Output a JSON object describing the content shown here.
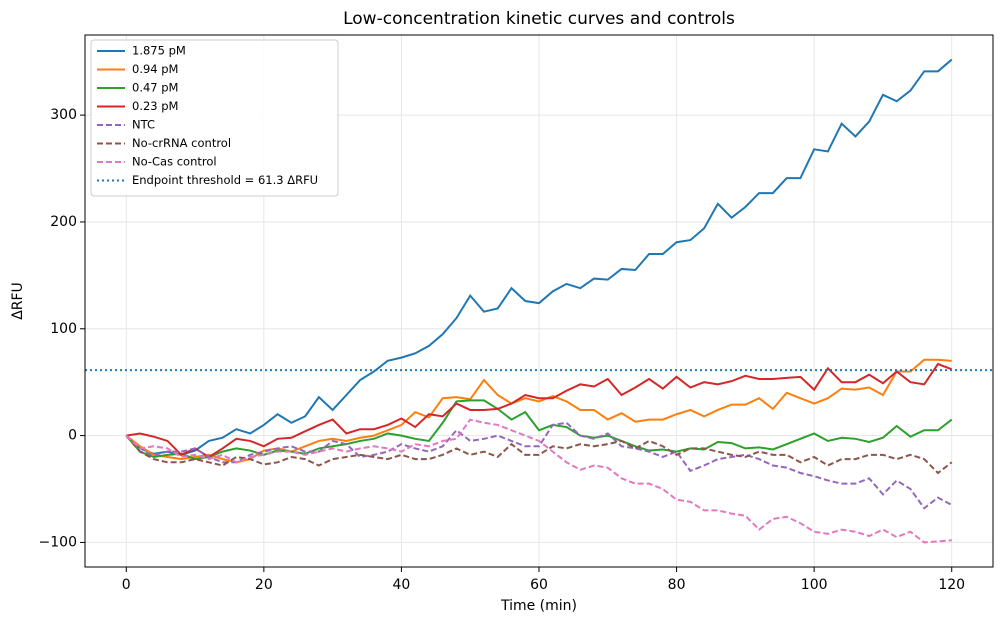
{
  "chart_data": {
    "type": "line",
    "title": "Low-concentration kinetic curves and controls",
    "xlabel": "Time (min)",
    "ylabel": "ΔRFU",
    "x": [
      0,
      2,
      4,
      6,
      8,
      10,
      12,
      14,
      16,
      18,
      20,
      22,
      24,
      26,
      28,
      30,
      32,
      34,
      36,
      38,
      40,
      42,
      44,
      46,
      48,
      50,
      52,
      54,
      56,
      58,
      60,
      62,
      64,
      66,
      68,
      70,
      72,
      74,
      76,
      78,
      80,
      82,
      84,
      86,
      88,
      90,
      92,
      94,
      96,
      98,
      100,
      102,
      104,
      106,
      108,
      110,
      112,
      114,
      116,
      118,
      120
    ],
    "xlim": [
      -6,
      126
    ],
    "ylim": [
      -123,
      375
    ],
    "xticks": [
      0,
      20,
      40,
      60,
      80,
      100,
      120
    ],
    "yticks": [
      {
        "value": -100,
        "label": "−100"
      },
      0,
      100,
      200,
      300
    ],
    "grid": true,
    "legend": "upper left",
    "series": [
      {
        "name": "1.875 pM",
        "color": "#1f77b4",
        "dash": "solid",
        "values": [
          0,
          -12,
          -17,
          -15,
          -18,
          -14,
          -5,
          -2,
          6,
          2,
          10,
          20,
          12,
          18,
          36,
          24,
          38,
          52,
          60,
          70,
          73,
          77,
          84,
          95,
          110,
          131,
          116,
          119,
          138,
          126,
          124,
          135,
          142,
          138,
          147,
          146,
          156,
          155,
          170,
          170,
          181,
          183,
          194,
          217,
          204,
          214,
          227,
          227,
          241,
          241,
          268,
          266,
          292,
          280,
          294,
          319,
          313,
          323,
          341,
          341,
          352
        ]
      },
      {
        "name": "0.94 pM",
        "color": "#ff7f0e",
        "dash": "solid",
        "values": [
          0,
          -10,
          -18,
          -20,
          -22,
          -20,
          -18,
          -22,
          -25,
          -22,
          -14,
          -12,
          -15,
          -10,
          -5,
          -3,
          -5,
          -2,
          0,
          5,
          10,
          22,
          17,
          35,
          36,
          34,
          52,
          38,
          30,
          35,
          32,
          37,
          32,
          24,
          24,
          15,
          21,
          13,
          15,
          15,
          20,
          24,
          18,
          24,
          29,
          29,
          35,
          25,
          40,
          35,
          30,
          35,
          44,
          43,
          45,
          38,
          60,
          60,
          71,
          71,
          70
        ]
      },
      {
        "name": "0.47 pM",
        "color": "#2ca02c",
        "dash": "solid",
        "values": [
          0,
          -15,
          -20,
          -18,
          -17,
          -22,
          -20,
          -15,
          -12,
          -14,
          -18,
          -14,
          -15,
          -17,
          -12,
          -10,
          -8,
          -5,
          -3,
          2,
          0,
          -3,
          -5,
          12,
          32,
          33,
          33,
          25,
          15,
          22,
          5,
          10,
          8,
          0,
          -2,
          0,
          -5,
          -10,
          -14,
          -13,
          -15,
          -12,
          -13,
          -6,
          -7,
          -12,
          -11,
          -13,
          -8,
          -3,
          2,
          -5,
          -2,
          -3,
          -6,
          -2,
          9,
          -1,
          5,
          5,
          15
        ]
      },
      {
        "name": "0.23 pM",
        "color": "#d62728",
        "dash": "solid",
        "values": [
          0,
          2,
          -1,
          -5,
          -18,
          -12,
          -20,
          -12,
          -3,
          -5,
          -10,
          -3,
          -2,
          4,
          10,
          15,
          2,
          6,
          6,
          10,
          16,
          8,
          20,
          18,
          30,
          24,
          24,
          25,
          30,
          38,
          35,
          35,
          42,
          48,
          46,
          53,
          38,
          45,
          53,
          44,
          55,
          45,
          50,
          48,
          51,
          56,
          53,
          53,
          54,
          55,
          43,
          63,
          50,
          50,
          57,
          49,
          60,
          50,
          48,
          67,
          62
        ]
      },
      {
        "name": "NTC",
        "color": "#9467bd",
        "dash": "dashed",
        "values": [
          0,
          -15,
          -18,
          -15,
          -15,
          -12,
          -20,
          -25,
          -25,
          -18,
          -15,
          -12,
          -10,
          -15,
          -15,
          -5,
          -8,
          -20,
          -18,
          -15,
          -8,
          -12,
          -15,
          -10,
          5,
          -5,
          -3,
          0,
          -5,
          -10,
          -10,
          10,
          12,
          0,
          -3,
          2,
          -10,
          -12,
          -15,
          -20,
          -15,
          -33,
          -28,
          -22,
          -20,
          -18,
          -22,
          -28,
          -30,
          -35,
          -38,
          -42,
          -45,
          -45,
          -40,
          -55,
          -42,
          -50,
          -68,
          -58,
          -65
        ]
      },
      {
        "name": "No-crRNA control",
        "color": "#8c564b",
        "dash": "dashed",
        "values": [
          0,
          -15,
          -22,
          -25,
          -25,
          -22,
          -25,
          -28,
          -20,
          -22,
          -27,
          -25,
          -20,
          -22,
          -28,
          -22,
          -20,
          -18,
          -20,
          -22,
          -18,
          -22,
          -22,
          -18,
          -12,
          -18,
          -15,
          -20,
          -8,
          -18,
          -18,
          -10,
          -12,
          -8,
          -10,
          -8,
          -5,
          -12,
          -5,
          -10,
          -18,
          -12,
          -12,
          -15,
          -18,
          -20,
          -15,
          -18,
          -18,
          -25,
          -20,
          -28,
          -22,
          -22,
          -18,
          -18,
          -22,
          -18,
          -22,
          -35,
          -25
        ]
      },
      {
        "name": "No-Cas control",
        "color": "#e377c2",
        "dash": "dashed",
        "values": [
          0,
          -12,
          -10,
          -12,
          -20,
          -18,
          -22,
          -18,
          -25,
          -20,
          -18,
          -15,
          -15,
          -18,
          -15,
          -12,
          -15,
          -12,
          -10,
          -12,
          -15,
          -8,
          -10,
          -5,
          -3,
          15,
          12,
          10,
          5,
          0,
          -5,
          -15,
          -25,
          -32,
          -28,
          -30,
          -40,
          -45,
          -45,
          -50,
          -60,
          -62,
          -70,
          -70,
          -73,
          -75,
          -88,
          -78,
          -76,
          -82,
          -90,
          -92,
          -88,
          -90,
          -94,
          -88,
          -95,
          -90,
          -100,
          -99,
          -98
        ]
      }
    ],
    "threshold": {
      "value": 61.3,
      "label": "Endpoint threshold = 61.3 ΔRFU",
      "color": "#1f77b4"
    }
  }
}
